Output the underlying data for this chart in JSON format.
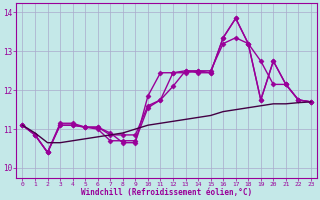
{
  "xlabel": "Windchill (Refroidissement éolien,°C)",
  "background_color": "#c4e8e8",
  "grid_color": "#aaaacc",
  "line_color": "#990099",
  "dark_line_color": "#440044",
  "xlim": [
    -0.5,
    23.5
  ],
  "ylim": [
    9.75,
    14.25
  ],
  "yticks": [
    10,
    11,
    12,
    13,
    14
  ],
  "xticks": [
    0,
    1,
    2,
    3,
    4,
    5,
    6,
    7,
    8,
    9,
    10,
    11,
    12,
    13,
    14,
    15,
    16,
    17,
    18,
    19,
    20,
    21,
    22,
    23
  ],
  "lines": [
    {
      "x": [
        0,
        1,
        2,
        3,
        4,
        5,
        6,
        7,
        8,
        9,
        10,
        11,
        12,
        13,
        14,
        15,
        16,
        17,
        18,
        19,
        20,
        21,
        22,
        23
      ],
      "y": [
        11.1,
        10.85,
        10.4,
        11.1,
        11.1,
        11.05,
        11.0,
        10.7,
        10.7,
        10.7,
        11.55,
        11.75,
        12.45,
        12.45,
        12.5,
        12.45,
        13.35,
        13.85,
        13.2,
        11.75,
        12.75,
        12.15,
        11.75,
        11.7
      ],
      "marker": "D",
      "markersize": 2.5,
      "linewidth": 1.0,
      "color": "#990099"
    },
    {
      "x": [
        0,
        1,
        2,
        3,
        4,
        5,
        6,
        7,
        8,
        9,
        10,
        11,
        12,
        13,
        14,
        15,
        16,
        17,
        18,
        19,
        20,
        21,
        22,
        23
      ],
      "y": [
        11.1,
        10.85,
        10.4,
        11.1,
        11.1,
        11.05,
        11.05,
        10.9,
        10.65,
        10.65,
        11.85,
        12.45,
        12.45,
        12.5,
        12.45,
        12.45,
        13.35,
        13.85,
        13.2,
        12.75,
        12.15,
        12.15,
        11.75,
        11.7
      ],
      "marker": "D",
      "markersize": 2.5,
      "linewidth": 1.0,
      "color": "#990099"
    },
    {
      "x": [
        0,
        1,
        2,
        3,
        4,
        5,
        6,
        7,
        8,
        9,
        10,
        11,
        12,
        13,
        14,
        15,
        16,
        17,
        18,
        19,
        20,
        21,
        22,
        23
      ],
      "y": [
        11.1,
        10.85,
        10.4,
        11.15,
        11.15,
        11.05,
        11.05,
        10.85,
        10.85,
        10.85,
        11.6,
        11.75,
        12.1,
        12.5,
        12.5,
        12.5,
        13.2,
        13.35,
        13.2,
        11.75,
        12.75,
        12.15,
        11.75,
        11.7
      ],
      "marker": "D",
      "markersize": 2.5,
      "linewidth": 1.0,
      "color": "#990099"
    },
    {
      "x": [
        0,
        1,
        2,
        3,
        4,
        5,
        6,
        7,
        8,
        9,
        10,
        11,
        12,
        13,
        14,
        15,
        16,
        17,
        18,
        19,
        20,
        21,
        22,
        23
      ],
      "y": [
        11.1,
        10.9,
        10.65,
        10.65,
        10.7,
        10.75,
        10.8,
        10.85,
        10.9,
        11.0,
        11.1,
        11.15,
        11.2,
        11.25,
        11.3,
        11.35,
        11.45,
        11.5,
        11.55,
        11.6,
        11.65,
        11.65,
        11.68,
        11.7
      ],
      "marker": null,
      "markersize": 0,
      "linewidth": 1.0,
      "color": "#440044"
    }
  ]
}
